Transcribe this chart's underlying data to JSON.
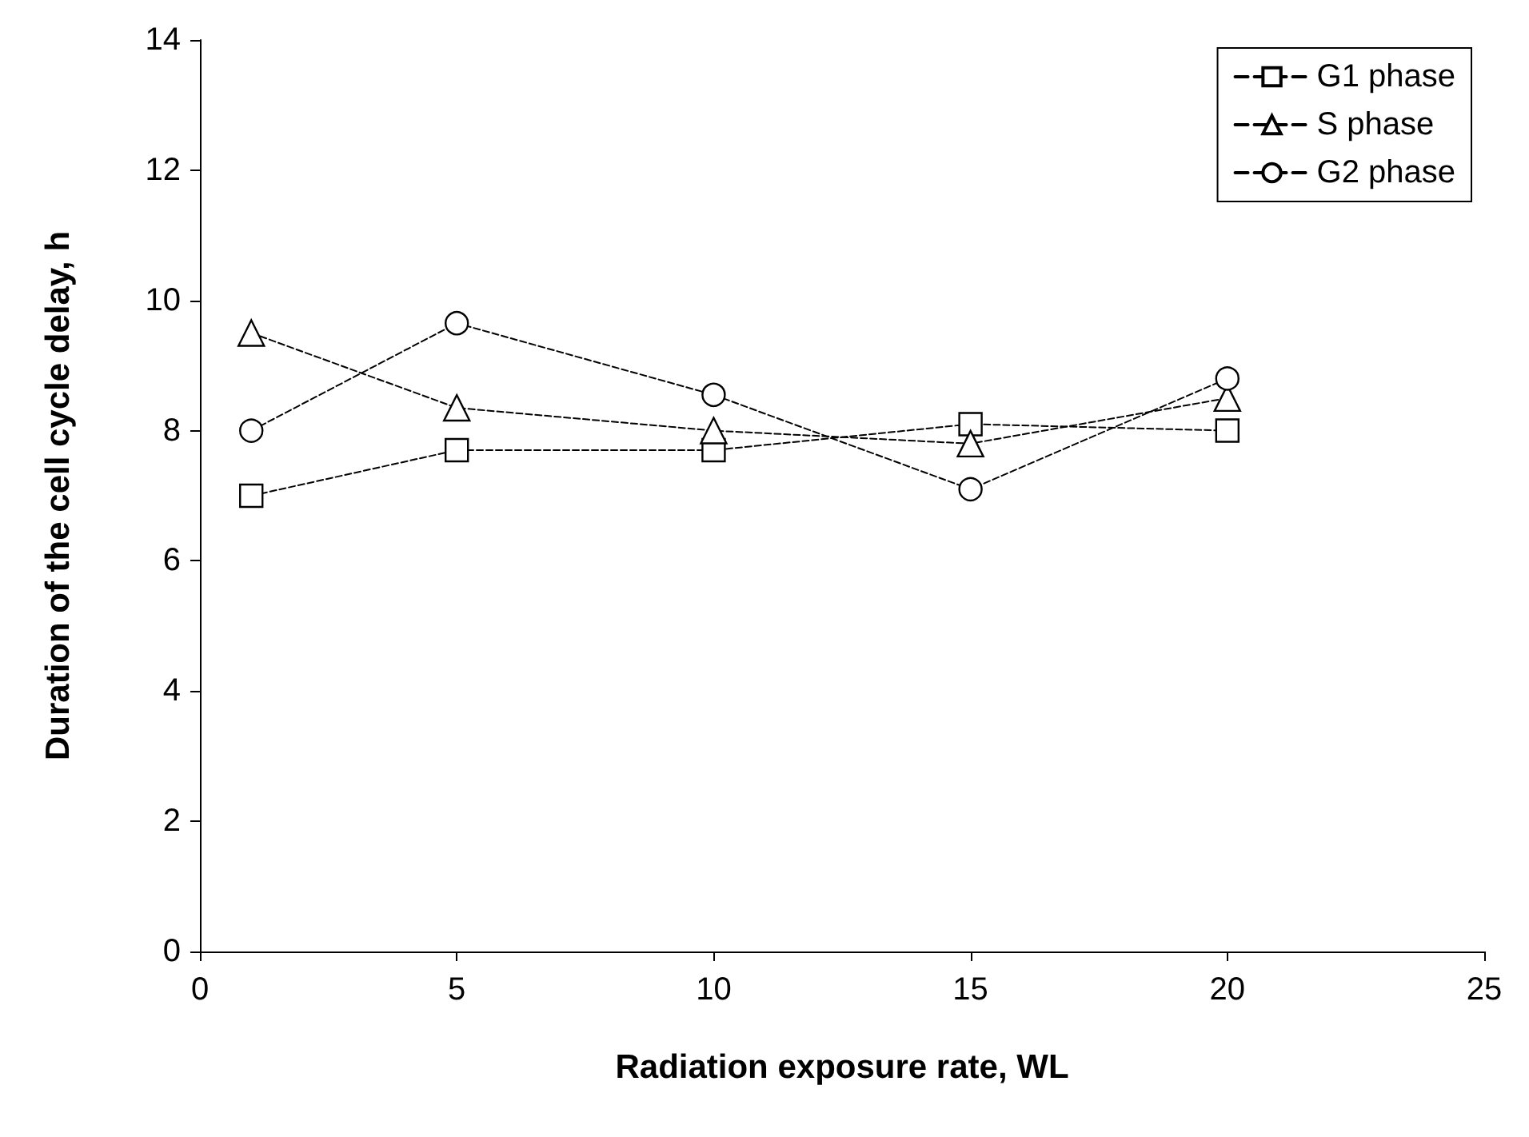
{
  "chart_data": {
    "type": "line",
    "xlabel": "Radiation exposure rate, WL",
    "ylabel": "Duration of the cell cycle delay, h",
    "x": [
      1,
      5,
      10,
      15,
      20
    ],
    "series": [
      {
        "name": "G1 phase",
        "color": "#000000",
        "marker": "square",
        "values": [
          7.0,
          7.7,
          7.7,
          8.1,
          8.0
        ]
      },
      {
        "name": "S phase",
        "color": "#000000",
        "marker": "triangle",
        "values": [
          9.5,
          8.35,
          8.0,
          7.8,
          8.5
        ]
      },
      {
        "name": "G2 phase",
        "color": "#000000",
        "marker": "circle",
        "values": [
          8.0,
          9.65,
          8.55,
          7.1,
          8.8
        ]
      }
    ],
    "xlim": [
      0,
      25
    ],
    "xticks": [
      0,
      5,
      10,
      15,
      20,
      25
    ],
    "ylim": [
      0,
      14
    ],
    "yticks": [
      0,
      2,
      4,
      6,
      8,
      10,
      12,
      14
    ],
    "grid": false,
    "legend": "top right",
    "line_style": "dashed"
  }
}
